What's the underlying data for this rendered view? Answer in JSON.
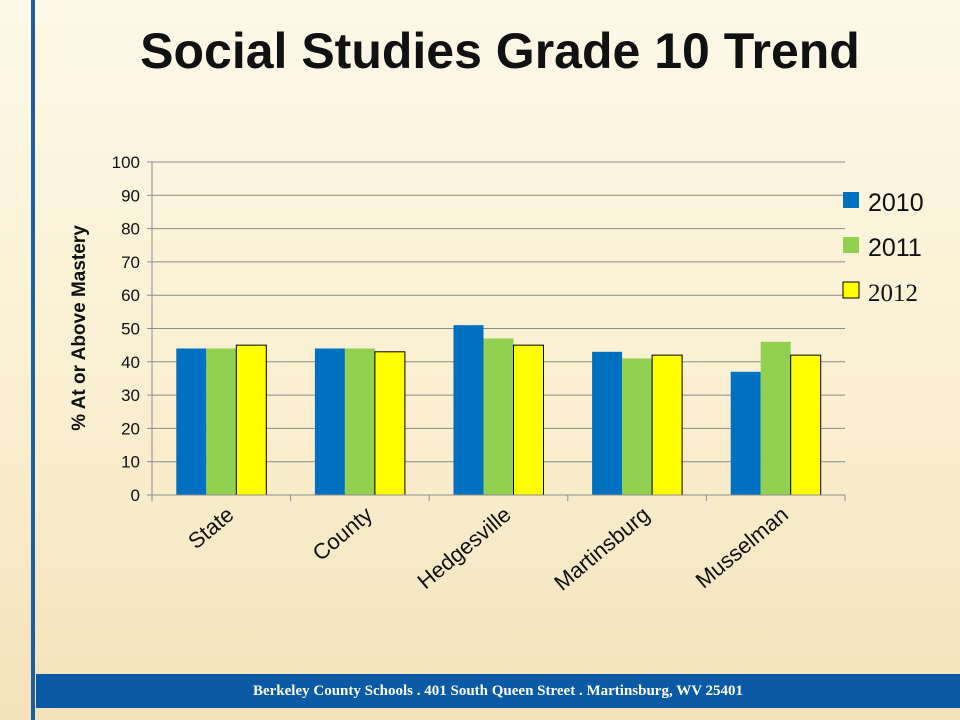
{
  "slide": {
    "title": "Social Studies Grade 10 Trend",
    "footer": "Berkeley County Schools . 401 South Queen Street . Martinsburg, WV  25401"
  },
  "chart_data": {
    "type": "bar",
    "title": "",
    "xlabel": "",
    "ylabel": "% At or Above Mastery",
    "categories": [
      "State",
      "County",
      "Hedgesville",
      "Martinsburg",
      "Musselman"
    ],
    "series": [
      {
        "name": "2010",
        "color": "#0070c0",
        "values": [
          44,
          44,
          51,
          43,
          37
        ]
      },
      {
        "name": "2011",
        "color": "#92d050",
        "values": [
          44,
          44,
          47,
          41,
          46
        ]
      },
      {
        "name": "2012",
        "color": "#ffff00",
        "values": [
          45,
          43,
          45,
          42,
          42
        ]
      }
    ],
    "ylim": [
      0,
      100
    ],
    "yticks": [
      0,
      10,
      20,
      30,
      40,
      50,
      60,
      70,
      80,
      90,
      100
    ],
    "grid": true,
    "legend": "right"
  }
}
